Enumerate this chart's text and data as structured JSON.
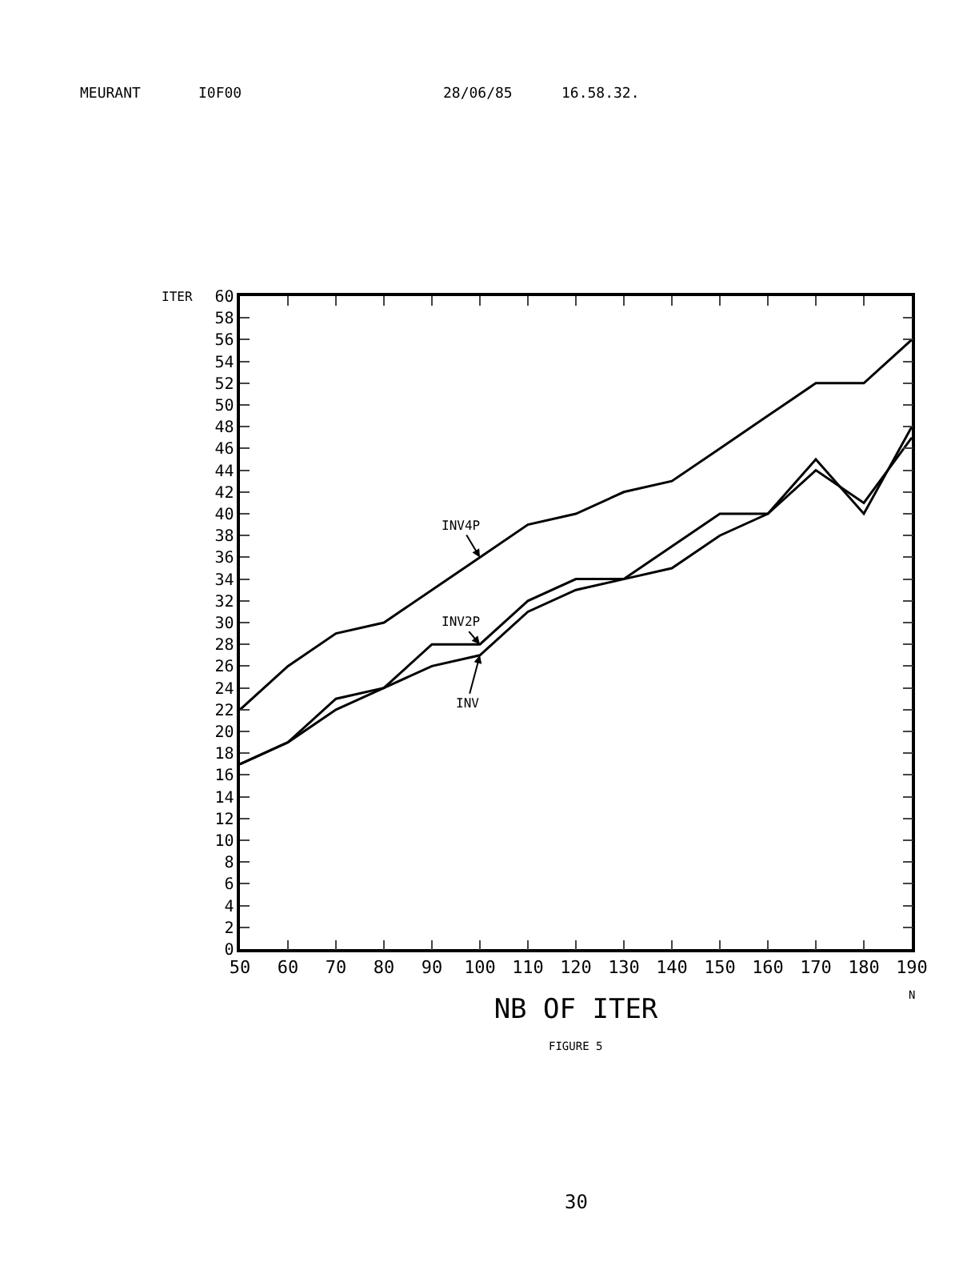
{
  "chart_data": {
    "type": "line",
    "xlabel": "NB OF ITER",
    "ylabel": "ITER",
    "x": [
      50,
      60,
      70,
      80,
      90,
      100,
      110,
      120,
      130,
      140,
      150,
      160,
      170,
      180,
      190
    ],
    "series": [
      {
        "name": "INV4P",
        "color": "#000000",
        "values": [
          22,
          26,
          29,
          30,
          33,
          36,
          39,
          40,
          42,
          43,
          46,
          49,
          52,
          52,
          56
        ]
      },
      {
        "name": "INV2P",
        "color": "#000000",
        "values": [
          17,
          19,
          23,
          24,
          28,
          28,
          32,
          34,
          34,
          37,
          40,
          40,
          45,
          40,
          48
        ]
      },
      {
        "name": "INV",
        "color": "#000000",
        "values": [
          17,
          19,
          22,
          24,
          26,
          27,
          31,
          33,
          34,
          35,
          38,
          40,
          44,
          41,
          47
        ]
      }
    ],
    "xlim": [
      50,
      190
    ],
    "xticks": [
      50,
      60,
      70,
      80,
      90,
      100,
      110,
      120,
      130,
      140,
      150,
      160,
      170,
      180,
      190
    ],
    "ylim": [
      0,
      60
    ],
    "yticks": [
      0,
      2,
      4,
      6,
      8,
      10,
      12,
      14,
      16,
      18,
      20,
      22,
      24,
      26,
      28,
      30,
      32,
      34,
      36,
      38,
      40,
      42,
      44,
      46,
      48,
      50,
      52,
      54,
      56,
      58,
      60
    ],
    "grid": false,
    "legend": false,
    "marker": "none",
    "line_style": "solid",
    "annotations": [
      "MEURANT",
      "I0F00",
      "28/06/85",
      "16.58.32.",
      "N",
      "FIGURE 5",
      "30"
    ]
  }
}
